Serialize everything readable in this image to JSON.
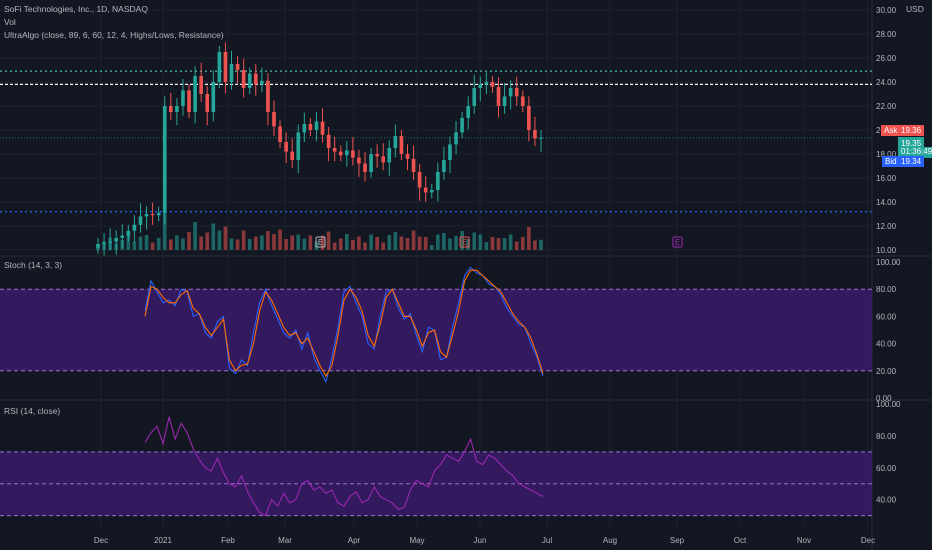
{
  "header": {
    "symbol_line": "SoFi Technologies, Inc., 1D, NASDAQ",
    "vol_label": "Vol",
    "indicator_label": "UltraAlgo (close, 89, 6, 60, 12, 4, Highs/Lows, Resistance)",
    "currency": "USD"
  },
  "quote": {
    "ask_label": "Ask",
    "ask": "19.36",
    "price": "19.35",
    "countdown": "01:36:49",
    "bid_label": "Bid",
    "bid": "19.34"
  },
  "colors": {
    "background": "#131722",
    "up": "#26a69a",
    "down": "#ef5350",
    "stoch_k": "#2962ff",
    "stoch_d": "#ff6d00",
    "rsi": "#9c27b0",
    "band_fill": "#3c1c6e",
    "support": "#2962ff",
    "resistance": "#4dd0b1",
    "white_line": "#ffffff",
    "earnings": "#9c27b0"
  },
  "stoch_panel": {
    "label": "Stoch (14, 3, 3)"
  },
  "rsi_panel": {
    "label": "RSI (14, close)"
  },
  "chart_data": [
    {
      "type": "candlestick",
      "title": "SoFi Technologies, Inc., 1D, NASDAQ",
      "ylabel": "USD",
      "ylim": [
        10,
        30
      ],
      "y_ticks": [
        "10.00",
        "12.00",
        "14.00",
        "16.00",
        "18.00",
        "20.00",
        "22.00",
        "24.00",
        "26.00",
        "28.00",
        "30.00"
      ],
      "x_ticks": [
        "Dec",
        "2021",
        "Feb",
        "Mar",
        "Apr",
        "May",
        "Jun",
        "Jul",
        "Aug",
        "Sep",
        "Oct",
        "Nov",
        "Dec"
      ],
      "horizontal_lines": [
        {
          "name": "resistance_top",
          "value": 24.9,
          "style": "dotted"
        },
        {
          "name": "resistance",
          "value": 23.8,
          "style": "dashed"
        },
        {
          "name": "support",
          "value": 13.2,
          "style": "dotted"
        }
      ],
      "last_price": 19.35,
      "earnings_markers": [
        "E",
        "E",
        "E"
      ],
      "close_path": [
        10.5,
        10.6,
        10.7,
        11.0,
        11.2,
        11.6,
        12.1,
        12.8,
        13.0,
        12.9,
        13.1,
        22.0,
        21.5,
        22.0,
        23.3,
        21.5,
        24.5,
        23.0,
        21.5,
        24.0,
        26.5,
        24.0,
        25.5,
        25.0,
        23.5,
        24.7,
        23.8,
        24.1,
        21.5,
        20.3,
        19.0,
        18.2,
        17.5,
        19.8,
        20.5,
        20.0,
        20.7,
        19.6,
        18.5,
        18.2,
        17.9,
        18.3,
        17.7,
        17.2,
        16.5,
        18.0,
        17.8,
        17.3,
        18.5,
        19.5,
        18.0,
        17.6,
        16.5,
        15.2,
        14.8,
        15.0,
        16.5,
        17.5,
        18.8,
        19.8,
        21.0,
        22.0,
        23.5,
        23.8,
        24.0,
        23.6,
        22.0,
        22.8,
        23.5,
        22.8,
        22.0,
        20.0,
        19.3,
        19.35
      ]
    },
    {
      "type": "line",
      "title": "Stoch (14, 3, 3)",
      "ylim": [
        0,
        100
      ],
      "y_ticks": [
        "0.00",
        "20.00",
        "40.00",
        "60.00",
        "80.00",
        "100.00"
      ],
      "band": [
        20,
        80
      ],
      "series": [
        {
          "name": "%K",
          "values": [
            64,
            86,
            78,
            70,
            72,
            68,
            80,
            78,
            60,
            62,
            48,
            44,
            56,
            60,
            22,
            18,
            28,
            24,
            48,
            70,
            80,
            68,
            58,
            48,
            44,
            50,
            36,
            48,
            30,
            20,
            12,
            30,
            52,
            78,
            82,
            70,
            60,
            40,
            36,
            60,
            78,
            80,
            66,
            58,
            62,
            46,
            34,
            52,
            50,
            28,
            30,
            52,
            70,
            90,
            96,
            92,
            90,
            84,
            82,
            76,
            66,
            60,
            54,
            52,
            40,
            30,
            16
          ]
        },
        {
          "name": "%D",
          "values": [
            60,
            82,
            80,
            74,
            70,
            70,
            76,
            79,
            66,
            62,
            52,
            46,
            52,
            58,
            28,
            20,
            24,
            25,
            40,
            64,
            78,
            72,
            62,
            52,
            46,
            48,
            40,
            44,
            34,
            24,
            16,
            24,
            46,
            72,
            80,
            74,
            64,
            46,
            38,
            54,
            74,
            80,
            70,
            60,
            60,
            50,
            38,
            48,
            50,
            34,
            30,
            46,
            64,
            86,
            94,
            94,
            90,
            86,
            82,
            78,
            70,
            62,
            56,
            52,
            44,
            32,
            18
          ]
        }
      ]
    },
    {
      "type": "line",
      "title": "RSI (14, close)",
      "ylim": [
        30,
        100
      ],
      "y_ticks": [
        "40.00",
        "60.00",
        "80.00",
        "100.00"
      ],
      "band": [
        30,
        70
      ],
      "series": [
        {
          "name": "RSI",
          "values": [
            76,
            82,
            86,
            75,
            92,
            78,
            88,
            82,
            72,
            65,
            60,
            58,
            66,
            57,
            50,
            48,
            55,
            45,
            38,
            32,
            30,
            40,
            36,
            44,
            38,
            40,
            50,
            52,
            46,
            48,
            44,
            46,
            38,
            36,
            42,
            45,
            38,
            40,
            48,
            42,
            40,
            38,
            34,
            35,
            46,
            52,
            50,
            48,
            58,
            62,
            68,
            66,
            64,
            70,
            78,
            64,
            62,
            68,
            66,
            62,
            58,
            55,
            50,
            48,
            46,
            44,
            42
          ]
        }
      ]
    }
  ]
}
